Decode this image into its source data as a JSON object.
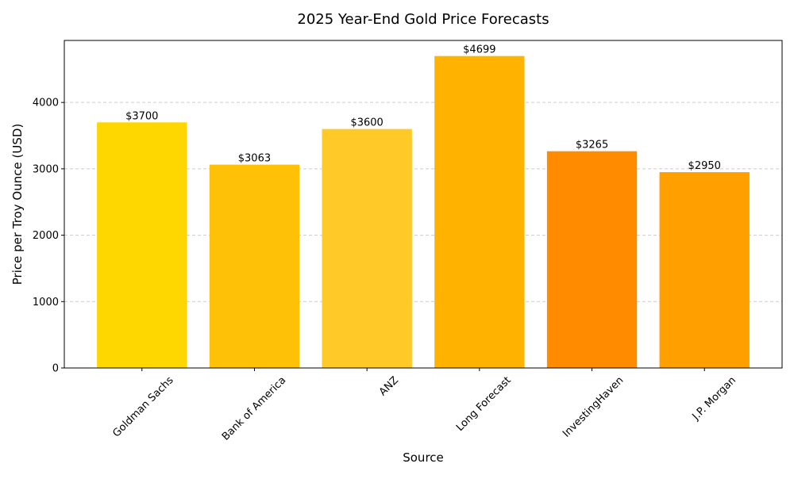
{
  "chart_data": {
    "type": "bar",
    "title": "2025 Year-End Gold Price Forecasts",
    "xlabel": "Source",
    "ylabel": "Price per Troy Ounce (USD)",
    "categories": [
      "Goldman Sachs",
      "Bank of America",
      "ANZ",
      "Long Forecast",
      "InvestingHaven",
      "J.P. Morgan"
    ],
    "values": [
      3700,
      3063,
      3600,
      4699,
      3265,
      2950
    ],
    "data_labels": [
      "$3700",
      "$3063",
      "$3600",
      "$4699",
      "$3265",
      "$2950"
    ],
    "colors": [
      "#FFD700",
      "#FFC107",
      "#FFCA28",
      "#FFB300",
      "#FF8C00",
      "#FFA000"
    ],
    "ylim": [
      0,
      4934
    ],
    "yticks": [
      0,
      1000,
      2000,
      3000,
      4000
    ],
    "ytick_labels": [
      "0",
      "1000",
      "2000",
      "3000",
      "4000"
    ],
    "grid": "y-dashed",
    "xtick_rotation": 45
  }
}
